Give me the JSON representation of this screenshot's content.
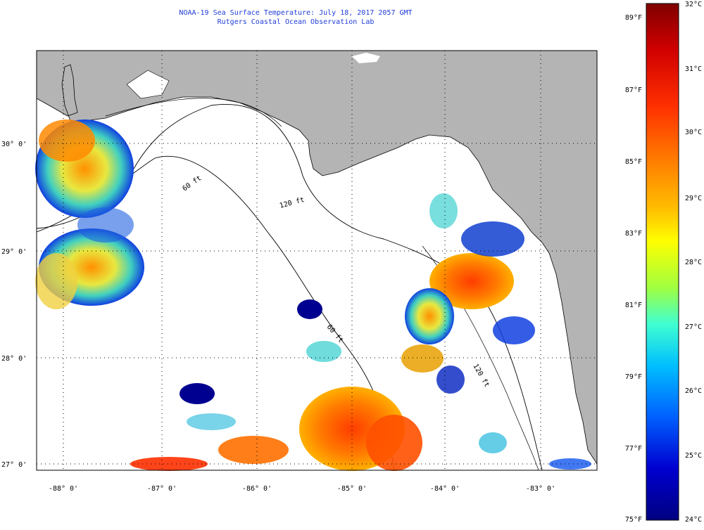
{
  "header": {
    "title": "NOAA-19 Sea Surface Temperature:  July 18, 2017 2057 GMT",
    "subtitle": "Rutgers Coastal Ocean Observation Lab"
  },
  "map": {
    "lon_labels": [
      "-88° 0'",
      "-87° 0'",
      "-86° 0'",
      "-85° 0'",
      "-84° 0'",
      "-83° 0'"
    ],
    "lat_labels": [
      "30° 0'",
      "29° 0'",
      "28° 0'",
      "27° 0'"
    ],
    "contour_labels": [
      "60 ft",
      "120 ft",
      "60 ft",
      "120 ft"
    ],
    "land_color": "#b4b4b4",
    "grid": true
  },
  "colorbar": {
    "f_labels": [
      "89°F",
      "87°F",
      "85°F",
      "83°F",
      "81°F",
      "79°F",
      "77°F",
      "75°F"
    ],
    "c_labels": [
      "32°C",
      "31°C",
      "30°C",
      "29°C",
      "28°C",
      "27°C",
      "26°C",
      "25°C",
      "24°C"
    ],
    "colors": [
      "#800000",
      "#d00000",
      "#ff3000",
      "#ff7a00",
      "#ffb800",
      "#ffff00",
      "#a0ff40",
      "#40ffd0",
      "#00c0ff",
      "#0060ff",
      "#0000d0",
      "#000080"
    ]
  }
}
